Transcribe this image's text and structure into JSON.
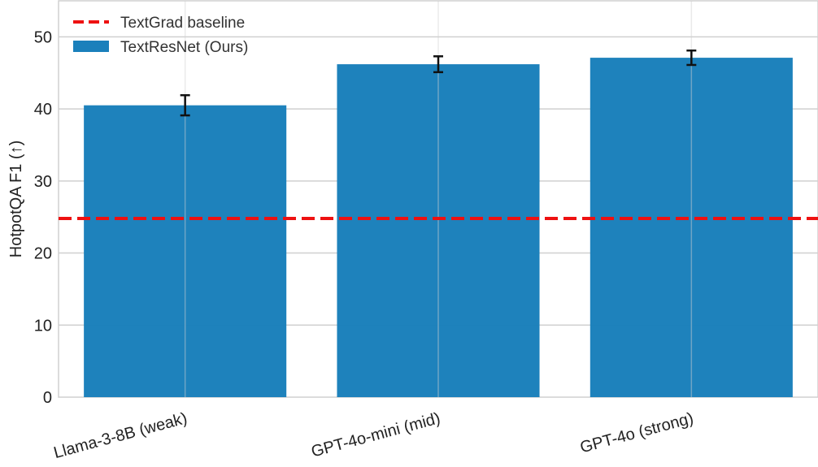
{
  "chart_data": {
    "type": "bar",
    "categories": [
      "Llama-3-8B (weak)",
      "GPT-4o-mini (mid)",
      "GPT-4o (strong)"
    ],
    "series": [
      {
        "name": "TextResNet (Ours)",
        "values": [
          40.5,
          46.2,
          47.1
        ],
        "error": [
          1.4,
          1.1,
          1.0
        ],
        "color": "#1a80bb"
      }
    ],
    "reference_lines": [
      {
        "name": "TextGrad baseline",
        "value": 24.8,
        "color": "#ee1111",
        "style": "dashed"
      }
    ],
    "title": "",
    "xlabel": "",
    "ylabel": "HotpotQA F1 (↑)",
    "ylim": [
      0,
      55
    ],
    "yticks": [
      0,
      10,
      20,
      30,
      40,
      50
    ],
    "grid": true,
    "legend_position": "top-left"
  }
}
